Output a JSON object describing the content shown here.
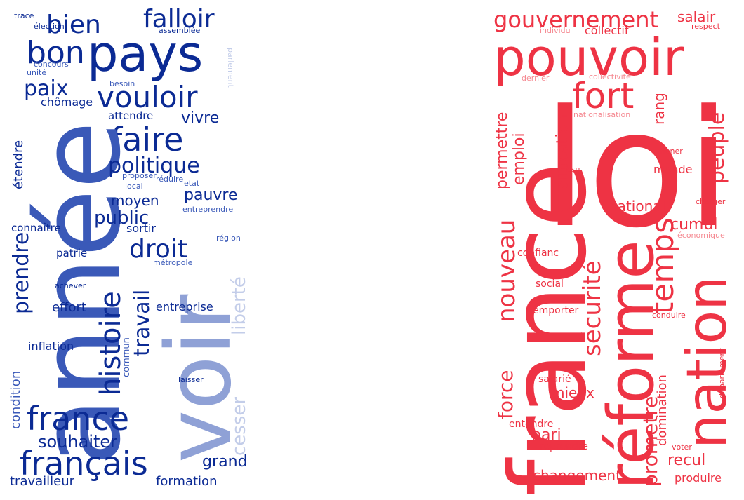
{
  "palette": {
    "blue_dark": "#0b2a94",
    "blue_mid": "#3a59b8",
    "blue_light": "#8fa1d6",
    "blue_pale": "#c3cde9",
    "red_main": "#ee3344",
    "red_light": "#f58a92",
    "red_pale": "#f8aeb4"
  },
  "clouds": [
    {
      "name": "left",
      "words": [
        "trace",
        "élection",
        "assemblée",
        "bien",
        "falloir",
        "pays",
        "bon",
        "unité",
        "concours",
        "parlement",
        "besoin",
        "paix",
        "vouloir",
        "chômage",
        "attendre",
        "vivre",
        "faire",
        "étendre",
        "année",
        "politique",
        "proposer",
        "local",
        "réduire",
        "etat",
        "voir",
        "pauvre",
        "moyen",
        "entreprendre",
        "public",
        "connaître",
        "sortir",
        "région",
        "droit",
        "prendre",
        "patrie",
        "métropole",
        "liberté",
        "histoire",
        "achever",
        "travail",
        "cesser",
        "effort",
        "entreprise",
        "inflation",
        "commun",
        "condition",
        "laisser",
        "france",
        "souhaiter",
        "grand",
        "français",
        "travailleur",
        "formation"
      ]
    },
    {
      "name": "right",
      "words": [
        "gouvernement",
        "salair",
        "individu",
        "collectif",
        "respect",
        "pouvoir",
        "dernier",
        "collectivité",
        "fort",
        "rang",
        "loi",
        "nationalisation",
        "peuple",
        "permettre",
        "emploi",
        "allocation",
        "mener",
        "issu",
        "monde",
        "national",
        "charger",
        "cumul",
        "nouveau",
        "sécurité",
        "économique",
        "temps",
        "donne",
        "confianc",
        "social",
        "conduire",
        "emporter",
        "france",
        "réforme",
        "nation",
        "département",
        "force",
        "prometre",
        "domination",
        "salarié",
        "mieux",
        "pari",
        "entendre",
        "reprendre",
        "recul",
        "voter",
        "changement",
        "produire"
      ]
    }
  ]
}
